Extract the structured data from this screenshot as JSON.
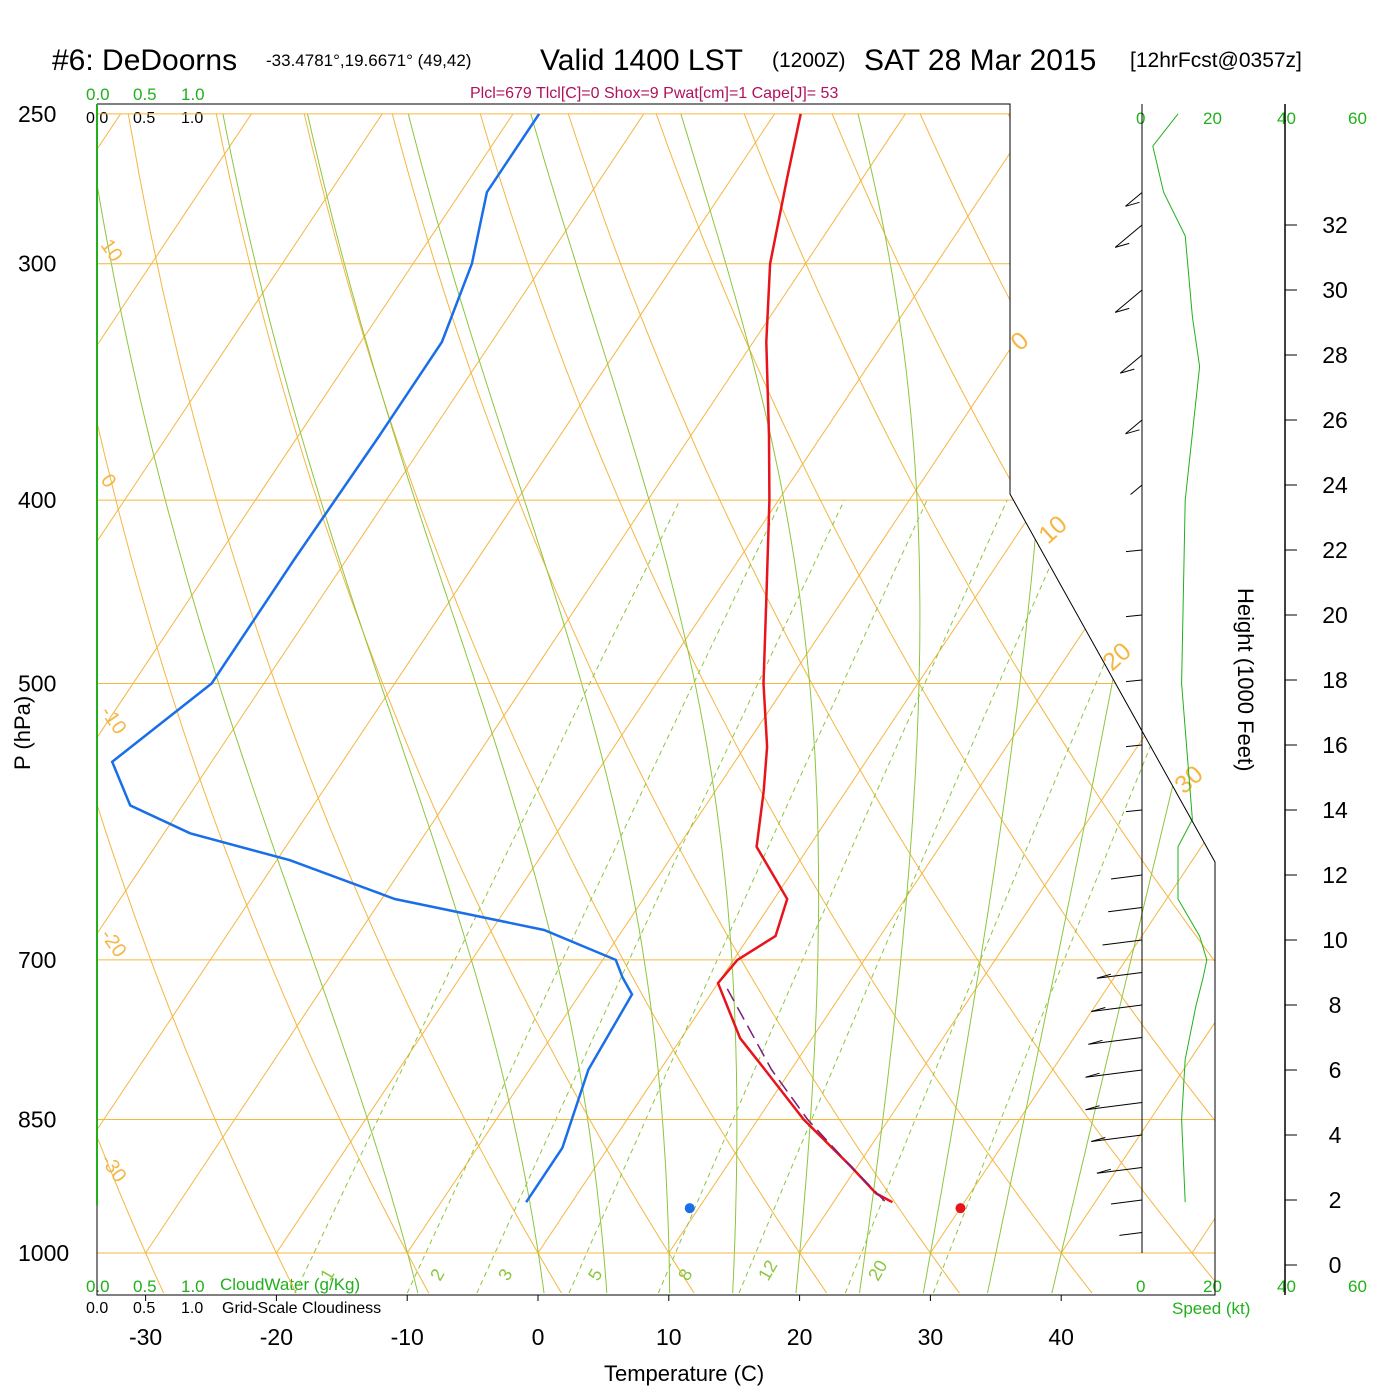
{
  "title": {
    "station": "#6: DeDoorns",
    "coords": "-33.4781°,19.6671° (49,42)",
    "valid": "Valid 1400 LST",
    "zulu": "(1200Z)",
    "date": "SAT 28 Mar 2015",
    "forecast": "[12hrFcst@0357z]"
  },
  "params_text": "Plcl=679 Tlcl[C]=0 Shox=9 Pwat[cm]=1 Cape[J]= 53",
  "cloud_scale": {
    "ticks": [
      "0.0",
      "0.5",
      "1.0"
    ],
    "cloudwater_label": "CloudWater (g/Kg)",
    "cloudiness_label": "Grid-Scale Cloudiness"
  },
  "speed_scale": {
    "ticks": [
      "0",
      "20",
      "40",
      "60"
    ],
    "label": "Speed (kt)"
  },
  "colors": {
    "isotherm": "#f5b642",
    "mixing_ratio": "#8cc63e",
    "temperature": "#e8141b",
    "dewpoint": "#1a6ee8",
    "parcel": "#7a1c7a",
    "green": "#21b01c",
    "params": "#b0105e"
  },
  "chart_data": {
    "type": "line",
    "subtype": "skew-T log-P sounding",
    "xlabel": "Temperature (C)",
    "ylabel": "P (hPa)",
    "y2label": "Height (1000 Feet)",
    "x_ticks": [
      -30,
      -20,
      -10,
      0,
      10,
      20,
      30,
      40
    ],
    "p_ticks": [
      250,
      300,
      400,
      500,
      700,
      850,
      1000
    ],
    "height_ticks": [
      0,
      2,
      4,
      6,
      8,
      10,
      12,
      14,
      16,
      18,
      20,
      22,
      24,
      26,
      28,
      30,
      32
    ],
    "isotherm_labels": [
      "10",
      "0",
      "-10",
      "-20",
      "-30"
    ],
    "adiabat_labels": [
      "0",
      "10",
      "20",
      "30"
    ],
    "mixing_ratio_labels": [
      "1",
      "2",
      "3",
      "5",
      "8",
      "12",
      "20"
    ],
    "series": [
      {
        "name": "Temperature",
        "points": [
          [
            250,
            -38.0
          ],
          [
            270,
            -35.8
          ],
          [
            300,
            -32.7
          ],
          [
            330,
            -29.0
          ],
          [
            370,
            -24.0
          ],
          [
            400,
            -20.7
          ],
          [
            450,
            -16.0
          ],
          [
            500,
            -11.8
          ],
          [
            540,
            -8.3
          ],
          [
            570,
            -6.3
          ],
          [
            610,
            -4.0
          ],
          [
            650,
            1.0
          ],
          [
            680,
            2.0
          ],
          [
            700,
            0.3
          ],
          [
            720,
            0.0
          ],
          [
            770,
            4.5
          ],
          [
            800,
            8.0
          ],
          [
            850,
            13.5
          ],
          [
            900,
            19.5
          ],
          [
            930,
            22.8
          ],
          [
            940,
            24.5
          ]
        ]
      },
      {
        "name": "Dewpoint",
        "points": [
          [
            250,
            -58.0
          ],
          [
            275,
            -58.0
          ],
          [
            300,
            -55.5
          ],
          [
            330,
            -53.8
          ],
          [
            370,
            -53.8
          ],
          [
            430,
            -54.0
          ],
          [
            500,
            -54.0
          ],
          [
            550,
            -57.6
          ],
          [
            580,
            -54.0
          ],
          [
            600,
            -48.0
          ],
          [
            620,
            -39.0
          ],
          [
            650,
            -29.0
          ],
          [
            675,
            -16.0
          ],
          [
            700,
            -9.0
          ],
          [
            715,
            -7.6
          ],
          [
            730,
            -6.0
          ],
          [
            800,
            -5.5
          ],
          [
            880,
            -3.5
          ],
          [
            930,
            -3.5
          ],
          [
            940,
            -3.5
          ]
        ]
      },
      {
        "name": "Parcel",
        "points": [
          [
            725,
            1.0
          ],
          [
            800,
            8.5
          ],
          [
            850,
            13.8
          ],
          [
            900,
            19.5
          ],
          [
            940,
            24.0
          ]
        ]
      },
      {
        "name": "Cloudiness",
        "points": [
          [
            940,
            12
          ],
          [
            850,
            11
          ],
          [
            790,
            12
          ],
          [
            740,
            15
          ],
          [
            715,
            17
          ],
          [
            700,
            18
          ],
          [
            680,
            16
          ],
          [
            650,
            10
          ],
          [
            610,
            10
          ],
          [
            590,
            14
          ],
          [
            500,
            11
          ],
          [
            400,
            12
          ],
          [
            340,
            16
          ],
          [
            320,
            14
          ],
          [
            290,
            12
          ],
          [
            275,
            6
          ],
          [
            260,
            3
          ],
          [
            250,
            10
          ]
        ]
      }
    ],
    "surface_markers": {
      "temperature": 32.3,
      "dewpoint": 11.6,
      "pressure": 940
    },
    "wind_profile_kt": [
      {
        "height_kft": 1,
        "speed": 2
      },
      {
        "height_kft": 2,
        "speed": 5
      },
      {
        "height_kft": 3,
        "speed": 10
      },
      {
        "height_kft": 4,
        "speed": 12
      },
      {
        "height_kft": 5,
        "speed": 14
      },
      {
        "height_kft": 6,
        "speed": 14
      },
      {
        "height_kft": 7,
        "speed": 13
      },
      {
        "height_kft": 8,
        "speed": 12
      },
      {
        "height_kft": 9,
        "speed": 10
      },
      {
        "height_kft": 10,
        "speed": 8
      },
      {
        "height_kft": 11,
        "speed": 6
      },
      {
        "height_kft": 12,
        "speed": 5
      },
      {
        "height_kft": 14,
        "speed": 3
      },
      {
        "height_kft": 16,
        "speed": 3
      },
      {
        "height_kft": 18,
        "speed": 3
      },
      {
        "height_kft": 20,
        "speed": 3
      },
      {
        "height_kft": 22,
        "speed": 3
      },
      {
        "height_kft": 24,
        "speed": 5
      },
      {
        "height_kft": 26,
        "speed": 10
      },
      {
        "height_kft": 28,
        "speed": 15
      },
      {
        "height_kft": 30,
        "speed": 20
      },
      {
        "height_kft": 32,
        "speed": 20
      },
      {
        "height_kft": 33,
        "speed": 10
      }
    ],
    "grid": true
  }
}
